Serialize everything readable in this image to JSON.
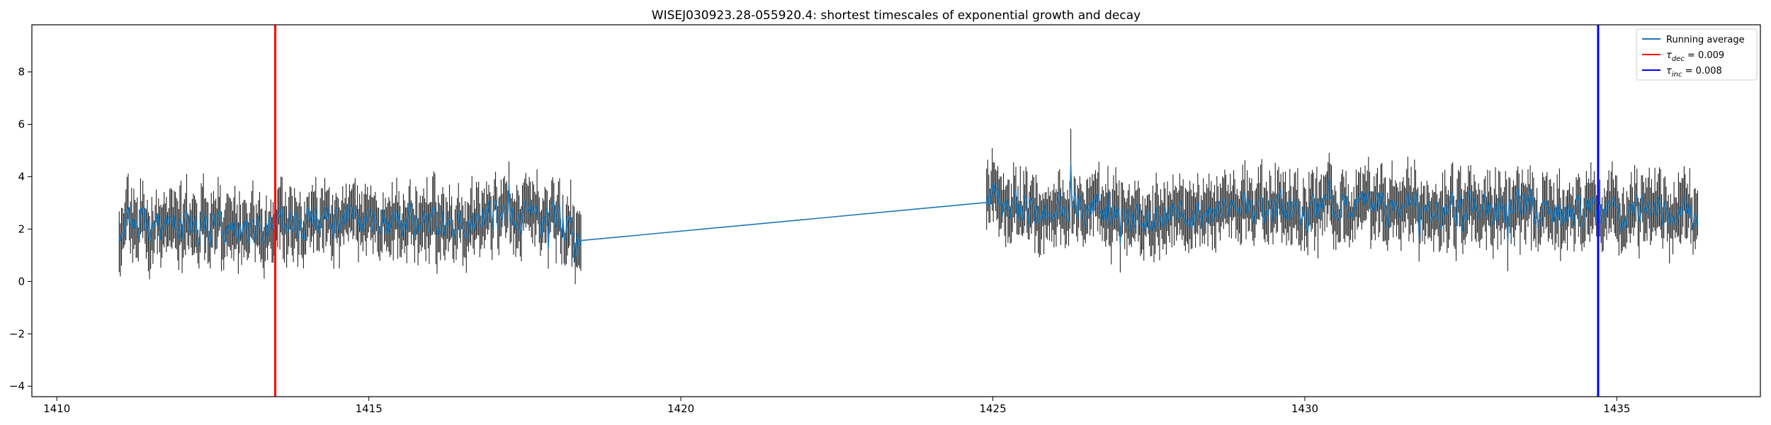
{
  "chart_data": {
    "type": "line",
    "title": "WISEJ030923.28-055920.4: shortest timescales of exponential growth and decay",
    "xlabel": "",
    "ylabel": "",
    "xlim": [
      1409.6,
      1437.3
    ],
    "ylim": [
      -4.4,
      9.8
    ],
    "x_ticks": [
      1410,
      1415,
      1420,
      1425,
      1430,
      1435
    ],
    "y_ticks": [
      -4,
      -2,
      0,
      2,
      4,
      6,
      8
    ],
    "grid": false,
    "legend_position": "top-right",
    "segments": [
      {
        "x_start": 1411.0,
        "x_end": 1418.4
      },
      {
        "x_start": 1424.9,
        "x_end": 1436.3
      }
    ],
    "series": [
      {
        "name": "Running average",
        "color": "#1f77b4",
        "style": "line",
        "anchor_points": [
          [
            1411.0,
            2.0
          ],
          [
            1411.5,
            2.2
          ],
          [
            1412.0,
            2.0
          ],
          [
            1412.5,
            2.1
          ],
          [
            1413.0,
            2.0
          ],
          [
            1413.5,
            2.2
          ],
          [
            1414.0,
            2.3
          ],
          [
            1414.5,
            2.2
          ],
          [
            1415.0,
            2.3
          ],
          [
            1415.5,
            2.2
          ],
          [
            1416.0,
            2.3
          ],
          [
            1416.5,
            2.4
          ],
          [
            1417.0,
            2.5
          ],
          [
            1417.5,
            2.4
          ],
          [
            1418.0,
            2.3
          ],
          [
            1418.4,
            1.75
          ],
          [
            1424.9,
            3.4
          ],
          [
            1425.5,
            2.6
          ],
          [
            1426.0,
            2.7
          ],
          [
            1426.5,
            2.9
          ],
          [
            1427.0,
            2.6
          ],
          [
            1427.5,
            2.4
          ],
          [
            1428.0,
            2.6
          ],
          [
            1428.5,
            2.7
          ],
          [
            1429.0,
            2.8
          ],
          [
            1429.5,
            2.7
          ],
          [
            1430.0,
            2.6
          ],
          [
            1430.5,
            2.8
          ],
          [
            1431.0,
            2.9
          ],
          [
            1431.5,
            2.8
          ],
          [
            1432.0,
            2.7
          ],
          [
            1432.5,
            2.8
          ],
          [
            1433.0,
            2.7
          ],
          [
            1433.5,
            2.8
          ],
          [
            1434.0,
            2.7
          ],
          [
            1434.5,
            2.6
          ],
          [
            1435.0,
            2.7
          ],
          [
            1435.5,
            2.8
          ],
          [
            1436.0,
            2.7
          ],
          [
            1436.3,
            2.4
          ]
        ],
        "noise_amplitude": 0.55
      },
      {
        "name": "",
        "color": "#222222",
        "style": "errorbars",
        "error_half_width": 0.9
      }
    ],
    "vlines": [
      {
        "x": 1413.5,
        "color": "#ff0000",
        "legend": "τ_dec = 0.009"
      },
      {
        "x": 1434.7,
        "color": "#0000ff",
        "legend": "τ_inc = 0.008"
      }
    ],
    "legend": [
      {
        "label": "Running average",
        "color": "#1f77b4",
        "tau": "",
        "sub": "",
        "suffix": ""
      },
      {
        "label": "",
        "color": "#ff0000",
        "tau": "τ",
        "sub": "dec",
        "suffix": " = 0.009"
      },
      {
        "label": "",
        "color": "#0000ff",
        "tau": "τ",
        "sub": "inc",
        "suffix": " = 0.008"
      }
    ]
  }
}
